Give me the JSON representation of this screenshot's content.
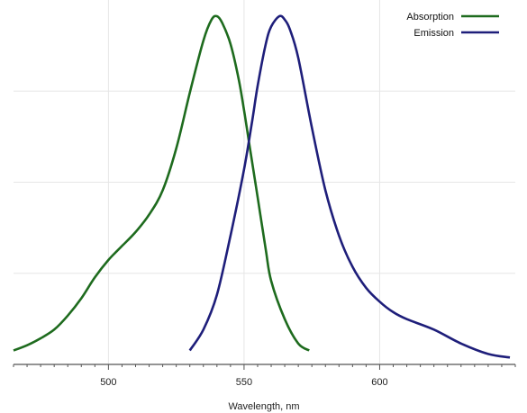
{
  "chart_data": {
    "type": "line",
    "title": "",
    "xlabel": "Wavelength, nm",
    "ylabel": "",
    "xlim": [
      465,
      650
    ],
    "ylim": [
      0,
      1
    ],
    "x_ticks": [
      500,
      550,
      600
    ],
    "x_ticks_labels": [
      "500",
      "550",
      "600"
    ],
    "x_minor_step": 5,
    "y_gridlines": [
      0.25,
      0.5,
      0.75
    ],
    "grid": true,
    "legend_position": "top-right",
    "series": [
      {
        "name": "Absorption",
        "color": "#1e6b1e",
        "x": [
          465,
          470,
          475,
          480,
          485,
          490,
          495,
          500,
          505,
          510,
          515,
          520,
          525,
          530,
          535,
          538,
          540,
          542,
          545,
          548,
          550,
          552,
          555,
          558,
          560,
          565,
          570,
          574
        ],
        "y": [
          0.04,
          0.055,
          0.075,
          0.1,
          0.14,
          0.19,
          0.25,
          0.3,
          0.34,
          0.38,
          0.43,
          0.5,
          0.62,
          0.78,
          0.93,
          0.99,
          1.0,
          0.98,
          0.92,
          0.82,
          0.73,
          0.63,
          0.48,
          0.33,
          0.24,
          0.13,
          0.06,
          0.04
        ]
      },
      {
        "name": "Emission",
        "color": "#1e1e7a",
        "x": [
          530,
          535,
          540,
          545,
          550,
          553,
          555,
          558,
          560,
          563,
          565,
          567,
          570,
          575,
          580,
          585,
          590,
          595,
          600,
          605,
          610,
          620,
          630,
          640,
          648
        ],
        "y": [
          0.04,
          0.1,
          0.2,
          0.37,
          0.56,
          0.7,
          0.8,
          0.92,
          0.97,
          1.0,
          0.99,
          0.96,
          0.88,
          0.68,
          0.5,
          0.37,
          0.28,
          0.22,
          0.18,
          0.15,
          0.13,
          0.1,
          0.06,
          0.03,
          0.02
        ]
      }
    ]
  }
}
